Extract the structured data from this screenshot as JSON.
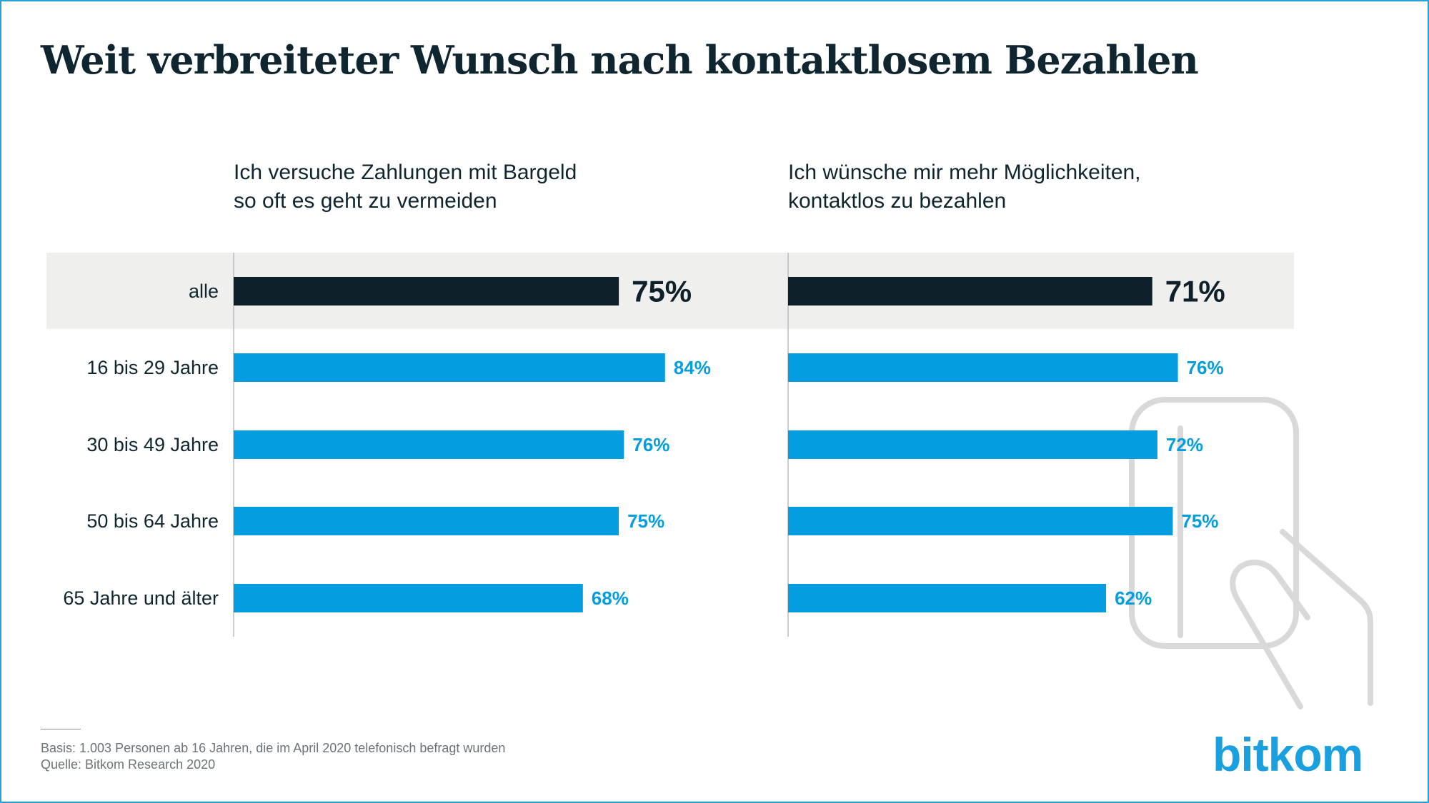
{
  "title": "Weit verbreiteter Wunsch nach kontaktlosem Bezahlen",
  "colors": {
    "highlight_bar": "#0e202a",
    "bar": "#049ee0",
    "highlight_band": "#efefee",
    "frame": "#2aa0d8",
    "brand": "#1aa0de"
  },
  "chart_data": [
    {
      "type": "bar",
      "orientation": "horizontal",
      "title_lines": [
        "Ich versuche Zahlungen mit Bargeld",
        "so oft es geht zu vermeiden"
      ],
      "categories": [
        "alle",
        "16 bis 29 Jahre",
        "30 bis 49 Jahre",
        "50 bis 64 Jahre",
        "65 Jahre und älter"
      ],
      "values": [
        75,
        84,
        76,
        75,
        68
      ],
      "value_labels": [
        "75%",
        "84%",
        "76%",
        "75%",
        "68%"
      ],
      "unit": "%",
      "highlight_category": "alle"
    },
    {
      "type": "bar",
      "orientation": "horizontal",
      "title_lines": [
        "Ich wünsche mir mehr Möglichkeiten,",
        "kontaktlos zu bezahlen"
      ],
      "categories": [
        "alle",
        "16 bis 29 Jahre",
        "30 bis 49 Jahre",
        "50 bis 64 Jahre",
        "65 Jahre und älter"
      ],
      "values": [
        71,
        76,
        72,
        75,
        62
      ],
      "value_labels": [
        "71%",
        "76%",
        "72%",
        "75%",
        "62%"
      ],
      "unit": "%",
      "highlight_category": "alle"
    }
  ],
  "footnote": {
    "basis": "Basis: 1.003 Personen ab 16 Jahren, die im April 2020 telefonisch befragt wurden",
    "source": "Quelle: Bitkom Research 2020"
  },
  "brand": "bitkom",
  "icons": [
    "hand-card-icon"
  ]
}
